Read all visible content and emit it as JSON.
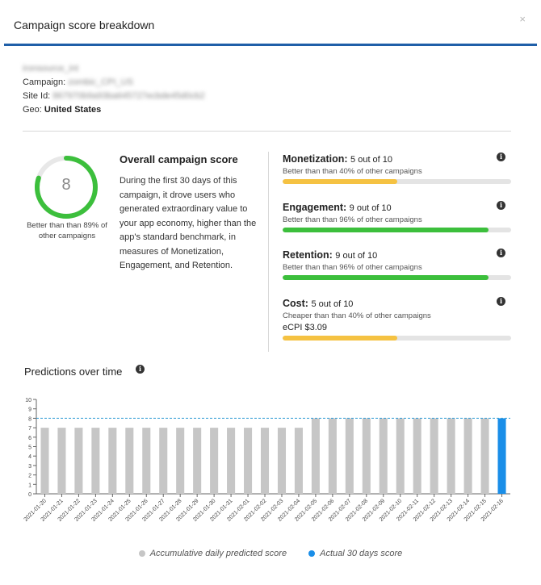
{
  "modal": {
    "title": "Campaign score breakdown",
    "close_label": "×"
  },
  "meta": {
    "source": "ironsource_int",
    "campaign_label": "Campaign:",
    "campaign_value": "zombic_CPI_US",
    "site_label": "Site Id:",
    "site_value": "867970b9a93ba645727ecbde45d0cb2",
    "geo_label": "Geo:",
    "geo_value": "United States"
  },
  "overall": {
    "score": "8",
    "score_fraction": 0.8,
    "caption": "Better than than 89% of other campaigns",
    "title": "Overall campaign score",
    "description": "During the first 30 days of this campaign, it drove users who generated extraordinary value to your app economy, higher than the app's standard benchmark, in measures of Monetization, Engagement, and Retention."
  },
  "metrics": [
    {
      "name": "Monetization:",
      "score_text": "5 out of 10",
      "score": 5,
      "sub": "Better than than 40% of other campaigns",
      "color": "#f5c242",
      "extra": ""
    },
    {
      "name": "Engagement:",
      "score_text": "9 out of 10",
      "score": 9,
      "sub": "Better than than 96% of other campaigns",
      "color": "#3cbf3c",
      "extra": ""
    },
    {
      "name": "Retention:",
      "score_text": "9 out of 10",
      "score": 9,
      "sub": "Better than than 96% of other campaigns",
      "color": "#3cbf3c",
      "extra": ""
    },
    {
      "name": "Cost:",
      "score_text": "5 out of 10",
      "score": 5,
      "sub": "Cheaper than than 40% of other campaigns",
      "color": "#f5c242",
      "extra": "eCPI $3.09"
    }
  ],
  "predictions": {
    "title": "Predictions over time"
  },
  "colors": {
    "accent": "#1f5fa8",
    "green": "#3cbf3c",
    "yellow": "#f5c242",
    "bar_gray": "#c6c6c6",
    "bar_blue": "#1a8ee8"
  },
  "chart_data": {
    "type": "bar",
    "categories": [
      "2021-01-20",
      "2021-01-21",
      "2021-01-22",
      "2021-01-23",
      "2021-01-24",
      "2021-01-25",
      "2021-01-26",
      "2021-01-27",
      "2021-01-28",
      "2021-01-29",
      "2021-01-30",
      "2021-01-31",
      "2021-02-01",
      "2021-02-02",
      "2021-02-03",
      "2021-02-04",
      "2021-02-05",
      "2021-02-06",
      "2021-02-07",
      "2021-02-08",
      "2021-02-09",
      "2021-02-10",
      "2021-02-11",
      "2021-02-12",
      "2021-02-13",
      "2021-02-14",
      "2021-02-15",
      "2021-02-16"
    ],
    "series": [
      {
        "name": "Accumulative daily predicted score",
        "values": [
          7,
          7,
          7,
          7,
          7,
          7,
          7,
          7,
          7,
          7,
          7,
          7,
          7,
          7,
          7,
          7,
          8,
          8,
          8,
          8,
          8,
          8,
          8,
          8,
          8,
          8,
          8,
          null
        ]
      },
      {
        "name": "Actual 30 days score",
        "values": [
          null,
          null,
          null,
          null,
          null,
          null,
          null,
          null,
          null,
          null,
          null,
          null,
          null,
          null,
          null,
          null,
          null,
          null,
          null,
          null,
          null,
          null,
          null,
          null,
          null,
          null,
          null,
          8
        ]
      }
    ],
    "reference_line": 8,
    "ylim": [
      0,
      10
    ],
    "yticks": [
      0,
      1,
      2,
      3,
      4,
      5,
      6,
      7,
      8,
      9,
      10
    ],
    "legend_position": "bottom",
    "grid": false
  }
}
